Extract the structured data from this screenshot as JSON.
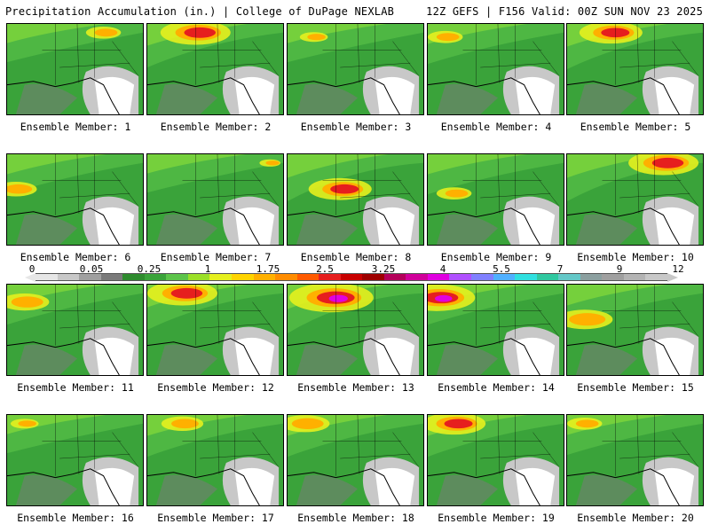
{
  "header": {
    "left": "Precipitation Accumulation (in.) | College of DuPage NEXLAB",
    "right": "12Z GEFS | F156 Valid: 00Z SUN NOV 23 2025"
  },
  "panels": [
    {
      "label": "Ensemble Member: 1"
    },
    {
      "label": "Ensemble Member: 2"
    },
    {
      "label": "Ensemble Member: 3"
    },
    {
      "label": "Ensemble Member: 4"
    },
    {
      "label": "Ensemble Member: 5"
    },
    {
      "label": "Ensemble Member: 6"
    },
    {
      "label": "Ensemble Member: 7"
    },
    {
      "label": "Ensemble Member: 8"
    },
    {
      "label": "Ensemble Member: 9"
    },
    {
      "label": "Ensemble Member: 10"
    },
    {
      "label": "Ensemble Member: 11"
    },
    {
      "label": "Ensemble Member: 12"
    },
    {
      "label": "Ensemble Member: 13"
    },
    {
      "label": "Ensemble Member: 14"
    },
    {
      "label": "Ensemble Member: 15"
    },
    {
      "label": "Ensemble Member: 16"
    },
    {
      "label": "Ensemble Member: 17"
    },
    {
      "label": "Ensemble Member: 18"
    },
    {
      "label": "Ensemble Member: 19"
    },
    {
      "label": "Ensemble Member: 20"
    }
  ],
  "colorbar": {
    "labels": [
      "0",
      "0.05",
      "0.25",
      "1",
      "1.75",
      "2.5",
      "3.25",
      "4",
      "5.5",
      "7",
      "9",
      "12"
    ],
    "colors": [
      "#e6e6e6",
      "#c8c8c8",
      "#a0a0a0",
      "#7a7a7a",
      "#2e8b2e",
      "#3aa33a",
      "#5cc44a",
      "#9be028",
      "#e6f01e",
      "#ffd400",
      "#ffb000",
      "#ff8c00",
      "#ff5a00",
      "#e61e1e",
      "#c80000",
      "#9e0000",
      "#b4005a",
      "#d0009a",
      "#e000e0",
      "#b050ff",
      "#8080ff",
      "#50b0ff",
      "#30e0e0",
      "#30c8a0",
      "#64c8c8",
      "#8ca0a0",
      "#a0a0a0",
      "#b4b4b4",
      "#c8c8c8"
    ]
  }
}
